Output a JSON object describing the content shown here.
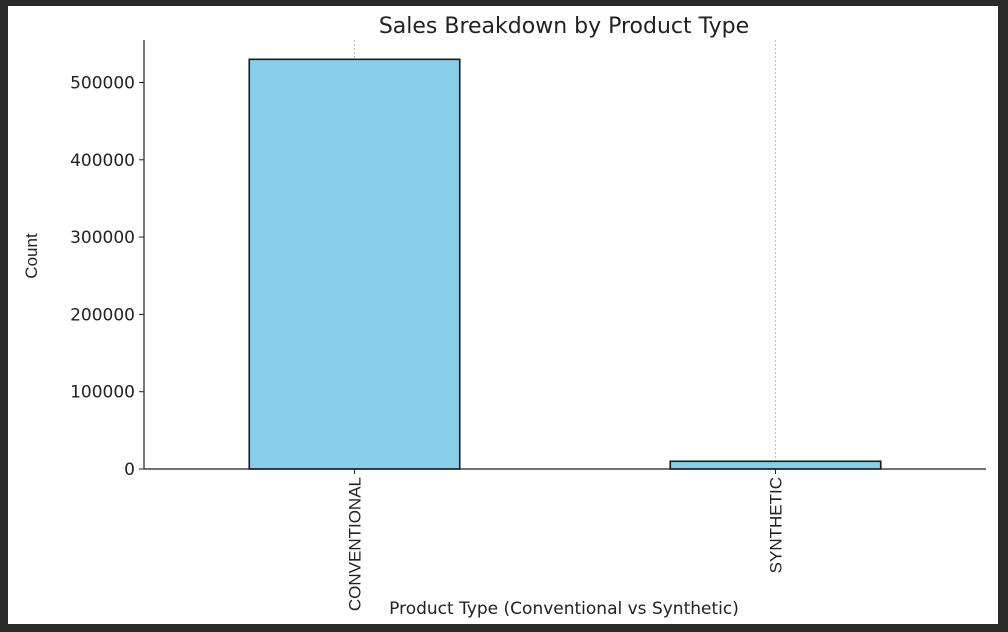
{
  "chart_data": {
    "type": "bar",
    "title": "Sales Breakdown by Product Type",
    "xlabel": "Product Type (Conventional vs Synthetic)",
    "ylabel": "Count",
    "categories": [
      "CONVENTIONAL",
      "SYNTHETIC"
    ],
    "values": [
      530000,
      10000
    ],
    "ylim": [
      0,
      555000
    ],
    "yticks": [
      0,
      100000,
      200000,
      300000,
      400000,
      500000
    ],
    "ytick_labels": [
      "0",
      "100000",
      "200000",
      "300000",
      "400000",
      "500000"
    ],
    "grid": "x-only (dotted vertical lines at category centers)",
    "bar_color": "#87CEEB",
    "edge_color": "#1a1a1a"
  }
}
